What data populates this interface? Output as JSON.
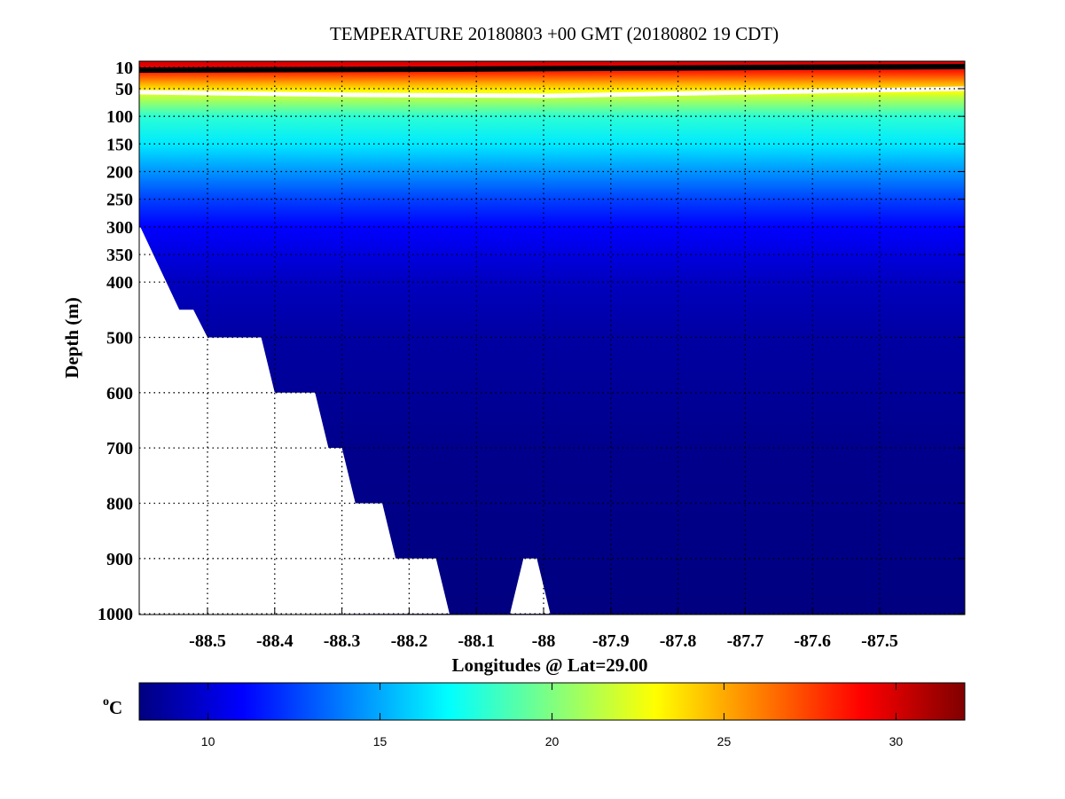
{
  "chart_data": {
    "type": "heatmap",
    "title": "TEMPERATURE 20180803 +00 GMT (20180802 19 CDT)",
    "xlabel": "Longitudes @ Lat=29.00",
    "ylabel": "Depth (m)",
    "xlim": [
      -88.6,
      -87.37
    ],
    "ylim": [
      1000,
      0
    ],
    "x_ticks": [
      -88.5,
      -88.4,
      -88.3,
      -88.2,
      -88.1,
      -88,
      -87.9,
      -87.8,
      -87.7,
      -87.6,
      -87.5
    ],
    "x_tick_labels": [
      "-88.5",
      "-88.4",
      "-88.3",
      "-88.2",
      "-88.1",
      "-88",
      "-87.9",
      "-87.8",
      "-87.7",
      "-87.6",
      "-87.5"
    ],
    "y_ticks": [
      10,
      50,
      100,
      150,
      200,
      250,
      300,
      350,
      400,
      500,
      600,
      700,
      800,
      900,
      1000
    ],
    "y_tick_labels": [
      "10",
      "50",
      "100",
      "150",
      "200",
      "250",
      "300",
      "350",
      "400",
      "500",
      "600",
      "700",
      "800",
      "900",
      "1000"
    ],
    "grid": true,
    "colormap": "jet",
    "colorbar": {
      "label": "oC",
      "label_sup": "o",
      "label_main": "C",
      "clim": [
        8,
        32
      ],
      "ticks": [
        10,
        15,
        20,
        25,
        30
      ],
      "tick_labels": [
        "10",
        "15",
        "20",
        "25",
        "30"
      ],
      "placement": "bottom"
    },
    "temperature_profile": {
      "depth": [
        0,
        10,
        20,
        40,
        55,
        65,
        80,
        100,
        150,
        200,
        250,
        300,
        400,
        500,
        700,
        1000
      ],
      "temperature": [
        30,
        29.5,
        28,
        25,
        23,
        21.5,
        20,
        18,
        16.5,
        14.5,
        12.5,
        11,
        9.5,
        8.8,
        8.3,
        8
      ]
    },
    "seafloor": {
      "lon": [
        -88.6,
        -88.542,
        -88.521,
        -88.5,
        -88.42,
        -88.4,
        -88.34,
        -88.32,
        -88.3,
        -88.28,
        -88.24,
        -88.22,
        -88.16,
        -88.14,
        -88.05,
        -88.03,
        -88.01,
        -87.99
      ],
      "depth": [
        300,
        450,
        450,
        500,
        500,
        600,
        600,
        700,
        700,
        800,
        800,
        900,
        900,
        1000,
        1000,
        900,
        900,
        1000
      ]
    }
  }
}
